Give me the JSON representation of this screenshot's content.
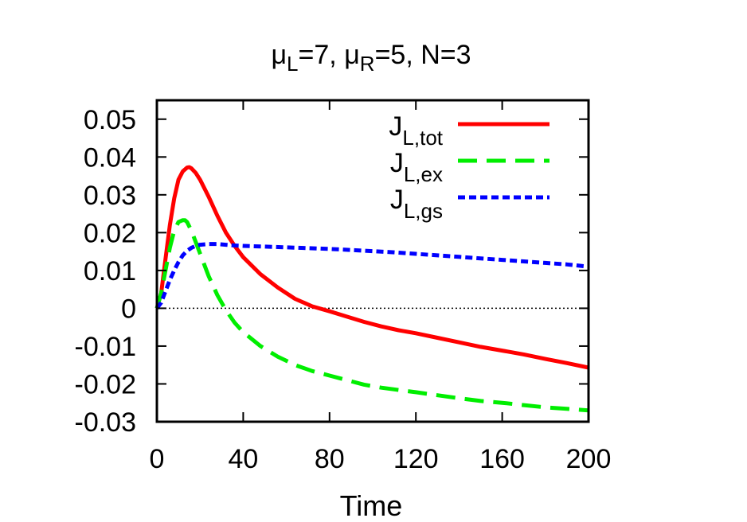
{
  "chart_data": {
    "type": "line",
    "title_parts": {
      "mu1": "μ",
      "sub1": "L",
      "eq1": "=7, ",
      "mu2": "μ",
      "sub2": "R",
      "eq2": "=5, N=3"
    },
    "title": "μL=7, μR=5, N=3",
    "xlabel": "Time",
    "ylabel": "",
    "xlim": [
      0,
      200
    ],
    "ylim": [
      -0.03,
      0.055
    ],
    "xticks": [
      0,
      40,
      80,
      120,
      160,
      200
    ],
    "xtick_labels": [
      "0",
      "40",
      "80",
      "120",
      "160",
      "200"
    ],
    "yticks": [
      -0.03,
      -0.02,
      -0.01,
      0,
      0.01,
      0.02,
      0.03,
      0.04,
      0.05
    ],
    "ytick_labels": [
      "-0.03",
      "-0.02",
      "-0.01",
      "0",
      "0.01",
      "0.02",
      "0.03",
      "0.04",
      "0.05"
    ],
    "zero_line": true,
    "legend_position": "top-right",
    "series": [
      {
        "name": "J_L,tot",
        "label_main": "J",
        "label_sub": "L,tot",
        "color": "#ff0000",
        "style": "solid",
        "x": [
          0,
          2,
          4,
          6,
          8,
          10,
          12,
          14,
          15,
          16,
          18,
          20,
          24,
          28,
          32,
          36,
          40,
          48,
          56,
          64,
          72,
          80,
          88,
          96,
          104,
          112,
          120,
          130,
          140,
          150,
          160,
          170,
          180,
          190,
          200
        ],
        "y": [
          0,
          0.004,
          0.013,
          0.022,
          0.029,
          0.034,
          0.0362,
          0.0372,
          0.0373,
          0.037,
          0.0358,
          0.034,
          0.0295,
          0.0245,
          0.02,
          0.0165,
          0.0135,
          0.009,
          0.0055,
          0.0025,
          0.0005,
          -0.0008,
          -0.0022,
          -0.0036,
          -0.0048,
          -0.0058,
          -0.0066,
          -0.0078,
          -0.009,
          -0.0102,
          -0.0112,
          -0.0122,
          -0.0134,
          -0.0145,
          -0.0157
        ]
      },
      {
        "name": "J_L,ex",
        "label_main": "J",
        "label_sub": "L,ex",
        "color": "#00ee00",
        "style": "dashed",
        "x": [
          0,
          2,
          4,
          6,
          8,
          10,
          12,
          13,
          14,
          16,
          18,
          20,
          24,
          28,
          32,
          36,
          40,
          48,
          56,
          64,
          72,
          80,
          88,
          96,
          104,
          112,
          120,
          130,
          140,
          150,
          160,
          170,
          180,
          190,
          200
        ],
        "y": [
          0,
          0.004,
          0.01,
          0.016,
          0.0205,
          0.0228,
          0.0233,
          0.0233,
          0.0228,
          0.0205,
          0.0175,
          0.0145,
          0.0085,
          0.0035,
          -0.0005,
          -0.0038,
          -0.0063,
          -0.01,
          -0.0128,
          -0.015,
          -0.0166,
          -0.0178,
          -0.019,
          -0.0202,
          -0.021,
          -0.0216,
          -0.0222,
          -0.023,
          -0.0238,
          -0.0245,
          -0.025,
          -0.0256,
          -0.0262,
          -0.0266,
          -0.027
        ]
      },
      {
        "name": "J_L,gs",
        "label_main": "J",
        "label_sub": "L,gs",
        "color": "#0000ff",
        "style": "dotted",
        "x": [
          0,
          2,
          4,
          6,
          8,
          10,
          12,
          14,
          16,
          18,
          20,
          24,
          28,
          32,
          36,
          40,
          50,
          60,
          70,
          80,
          90,
          100,
          110,
          120,
          130,
          140,
          150,
          160,
          170,
          180,
          190,
          200
        ],
        "y": [
          0,
          0.0015,
          0.0045,
          0.0075,
          0.01,
          0.0122,
          0.014,
          0.0152,
          0.016,
          0.0165,
          0.0168,
          0.017,
          0.017,
          0.0168,
          0.0166,
          0.0165,
          0.0163,
          0.0161,
          0.0159,
          0.0157,
          0.0154,
          0.0151,
          0.0148,
          0.0144,
          0.014,
          0.0136,
          0.0132,
          0.0128,
          0.0124,
          0.012,
          0.0116,
          0.011
        ]
      }
    ]
  }
}
